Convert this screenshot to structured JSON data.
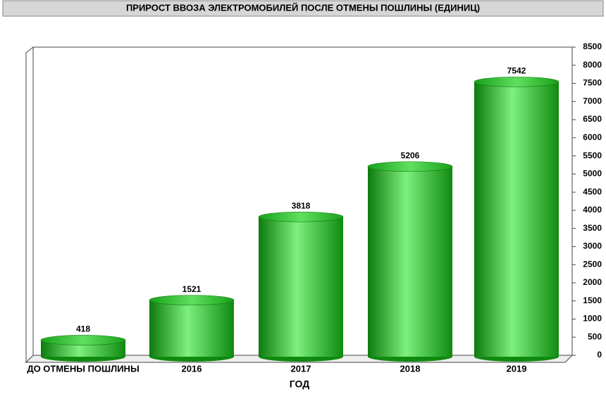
{
  "chart_data": {
    "type": "bar3d",
    "title": "ПРИРОСТ ВВОЗА ЭЛЕКТРОМОБИЛЕЙ ПОСЛЕ ОТМЕНЫ ПОШЛИНЫ (ЕДИНИЦ)",
    "x_label": "ГОД",
    "categories": [
      "ДО ОТМЕНЫ ПОШЛИНЫ",
      "2016",
      "2017",
      "2018",
      "2019"
    ],
    "values": [
      418,
      1521,
      3818,
      5206,
      7542
    ],
    "color": "#22b822",
    "ylim": [
      0,
      8500
    ],
    "yticks": [
      0,
      500,
      1000,
      1500,
      2000,
      2500,
      3000,
      3500,
      4000,
      4500,
      5000,
      5500,
      6000,
      6500,
      7000,
      7500,
      8000,
      8500
    ],
    "y_axis_side": "right",
    "grid": false
  }
}
